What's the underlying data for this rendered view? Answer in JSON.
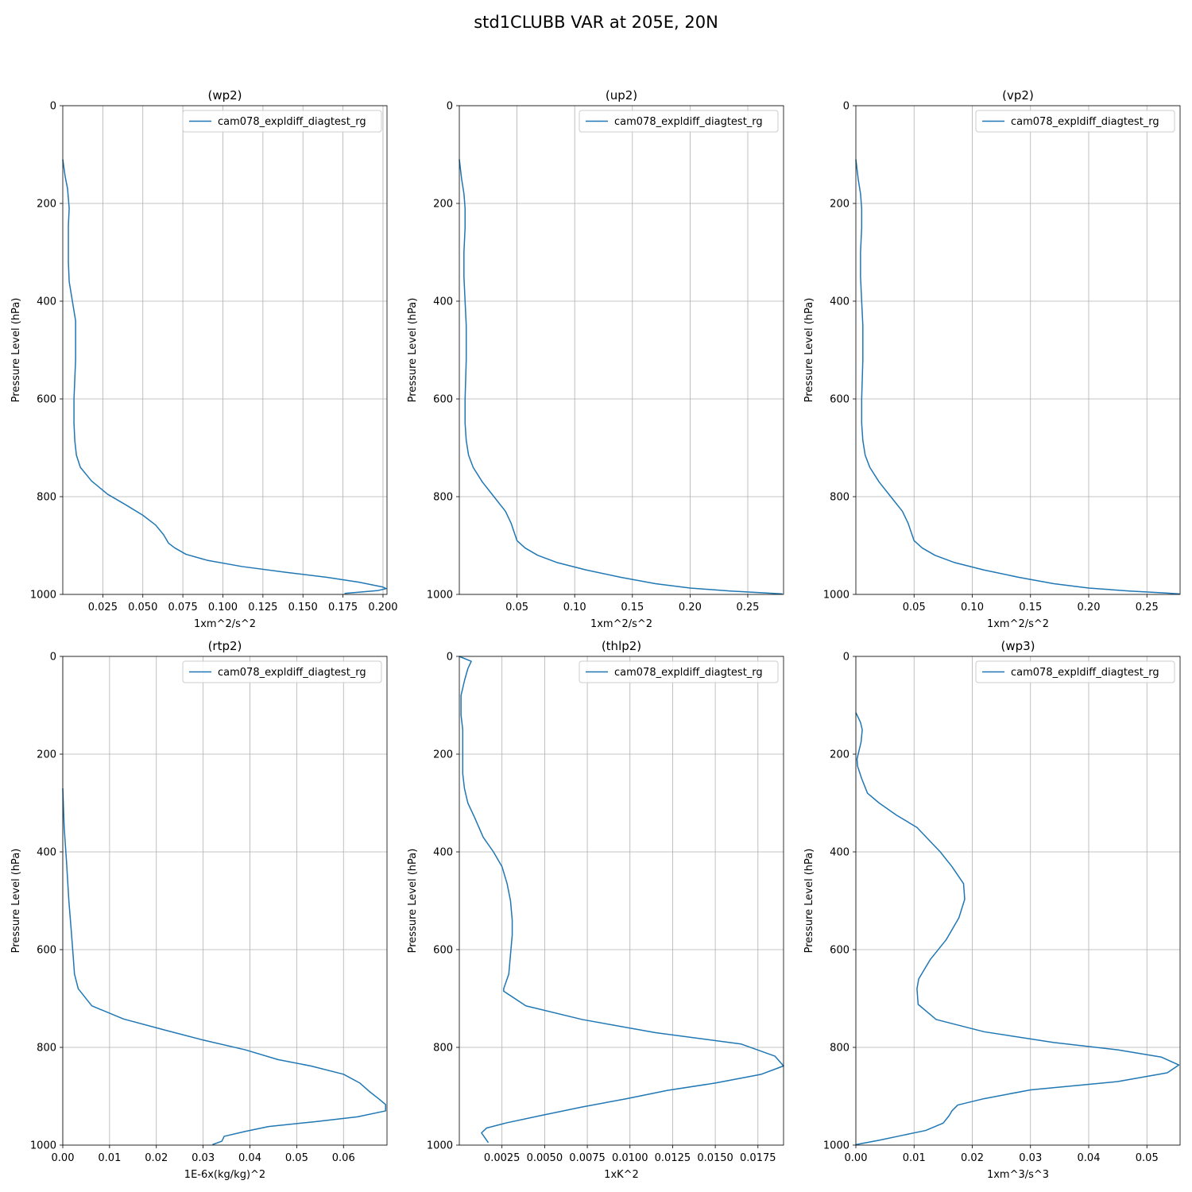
{
  "figure_title": "std1CLUBB VAR at 205E, 20N",
  "chart_data": [
    {
      "type": "line",
      "title": "(wp2)",
      "xlabel": "1xm^2/s^2",
      "ylabel": "Pressure Level (hPa)",
      "xlim": [
        0.0,
        0.2025
      ],
      "ylim": [
        1000,
        0
      ],
      "xticks": [
        0.025,
        0.05,
        0.075,
        0.1,
        0.125,
        0.15,
        0.175,
        0.2
      ],
      "xtick_labels": [
        "0.025",
        "0.050",
        "0.075",
        "0.100",
        "0.125",
        "0.150",
        "0.175",
        "0.200"
      ],
      "yticks": [
        0,
        200,
        400,
        600,
        800,
        1000
      ],
      "ytick_labels": [
        "0",
        "200",
        "400",
        "600",
        "800",
        "1000"
      ],
      "grid": true,
      "legend_position": "top-right",
      "series": [
        {
          "name": "cam078_expldiff_diagtest_rg",
          "color": "#1f77b4",
          "x": [
            0.0,
            0.0015,
            0.003,
            0.004,
            0.0035,
            0.0035,
            0.004,
            0.006,
            0.008,
            0.008,
            0.007,
            0.007,
            0.0075,
            0.0085,
            0.011,
            0.018,
            0.028,
            0.04,
            0.05,
            0.058,
            0.063,
            0.066,
            0.07,
            0.077,
            0.09,
            0.112,
            0.14,
            0.165,
            0.185,
            0.2,
            0.202,
            0.197,
            0.176
          ],
          "y": [
            110,
            145,
            170,
            210,
            245,
            320,
            360,
            400,
            440,
            520,
            600,
            650,
            685,
            715,
            740,
            768,
            795,
            818,
            838,
            858,
            878,
            895,
            905,
            918,
            930,
            943,
            955,
            965,
            975,
            985,
            988,
            992,
            998
          ]
        }
      ]
    },
    {
      "type": "line",
      "title": "(up2)",
      "xlabel": "1xm^2/s^2",
      "ylabel": "Pressure Level (hPa)",
      "xlim": [
        0.0,
        0.281
      ],
      "ylim": [
        1000,
        0
      ],
      "xticks": [
        0.05,
        0.1,
        0.15,
        0.2,
        0.25
      ],
      "xtick_labels": [
        "0.05",
        "0.10",
        "0.15",
        "0.20",
        "0.25"
      ],
      "yticks": [
        0,
        200,
        400,
        600,
        800,
        1000
      ],
      "ytick_labels": [
        "0",
        "200",
        "400",
        "600",
        "800",
        "1000"
      ],
      "grid": true,
      "legend_position": "top-right",
      "series": [
        {
          "name": "cam078_expldiff_diagtest_rg",
          "color": "#1f77b4",
          "x": [
            0.0,
            0.002,
            0.004,
            0.005,
            0.005,
            0.004,
            0.004,
            0.005,
            0.006,
            0.006,
            0.005,
            0.005,
            0.006,
            0.008,
            0.012,
            0.02,
            0.03,
            0.04,
            0.045,
            0.05,
            0.057,
            0.068,
            0.085,
            0.11,
            0.14,
            0.17,
            0.2,
            0.235,
            0.265,
            0.28
          ],
          "y": [
            110,
            150,
            180,
            210,
            250,
            300,
            350,
            400,
            450,
            520,
            600,
            650,
            685,
            715,
            740,
            770,
            800,
            830,
            855,
            890,
            905,
            920,
            935,
            950,
            965,
            978,
            987,
            993,
            997,
            999
          ]
        }
      ]
    },
    {
      "type": "line",
      "title": "(vp2)",
      "xlabel": "1xm^2/s^2",
      "ylabel": "Pressure Level (hPa)",
      "xlim": [
        0.0,
        0.2785
      ],
      "ylim": [
        1000,
        0
      ],
      "xticks": [
        0.05,
        0.1,
        0.15,
        0.2,
        0.25
      ],
      "xtick_labels": [
        "0.05",
        "0.10",
        "0.15",
        "0.20",
        "0.25"
      ],
      "yticks": [
        0,
        200,
        400,
        600,
        800,
        1000
      ],
      "ytick_labels": [
        "0",
        "200",
        "400",
        "600",
        "800",
        "1000"
      ],
      "grid": true,
      "legend_position": "top-right",
      "series": [
        {
          "name": "cam078_expldiff_diagtest_rg",
          "color": "#1f77b4",
          "x": [
            0.0,
            0.002,
            0.004,
            0.005,
            0.005,
            0.004,
            0.004,
            0.005,
            0.006,
            0.006,
            0.005,
            0.005,
            0.006,
            0.008,
            0.012,
            0.02,
            0.03,
            0.04,
            0.045,
            0.05,
            0.057,
            0.068,
            0.085,
            0.11,
            0.14,
            0.17,
            0.2,
            0.235,
            0.265,
            0.278
          ],
          "y": [
            110,
            150,
            180,
            210,
            250,
            300,
            350,
            400,
            450,
            520,
            600,
            650,
            685,
            715,
            740,
            770,
            800,
            830,
            855,
            890,
            905,
            920,
            935,
            950,
            965,
            978,
            987,
            993,
            997,
            999
          ]
        }
      ]
    },
    {
      "type": "line",
      "title": "(rtp2)",
      "xlabel": "1E-6x(kg/kg)^2",
      "ylabel": "Pressure Level (hPa)",
      "xlim": [
        0.0,
        0.0693
      ],
      "ylim": [
        1000,
        0
      ],
      "xticks": [
        0.0,
        0.01,
        0.02,
        0.03,
        0.04,
        0.05,
        0.06
      ],
      "xtick_labels": [
        "0.00",
        "0.01",
        "0.02",
        "0.03",
        "0.04",
        "0.05",
        "0.06"
      ],
      "yticks": [
        0,
        200,
        400,
        600,
        800,
        1000
      ],
      "ytick_labels": [
        "0",
        "200",
        "400",
        "600",
        "800",
        "1000"
      ],
      "grid": true,
      "legend_position": "top-right",
      "series": [
        {
          "name": "cam078_expldiff_diagtest_rg",
          "color": "#1f77b4",
          "x": [
            0.0,
            0.0003,
            0.0008,
            0.0013,
            0.0018,
            0.0022,
            0.0025,
            0.0033,
            0.0062,
            0.013,
            0.022,
            0.03,
            0.039,
            0.046,
            0.053,
            0.06,
            0.0635,
            0.0655,
            0.0675,
            0.069,
            0.069,
            0.063,
            0.054,
            0.044,
            0.039,
            0.0345,
            0.034,
            0.032
          ],
          "y": [
            270,
            350,
            420,
            500,
            560,
            610,
            650,
            680,
            715,
            742,
            765,
            785,
            805,
            825,
            838,
            855,
            873,
            890,
            905,
            917,
            930,
            942,
            952,
            962,
            972,
            982,
            992,
            999
          ]
        }
      ]
    },
    {
      "type": "line",
      "title": "(thlp2)",
      "xlabel": "1xK^2",
      "ylabel": "Pressure Level (hPa)",
      "xlim": [
        0.0,
        0.019
      ],
      "ylim": [
        1000,
        0
      ],
      "xticks": [
        0.0025,
        0.005,
        0.0075,
        0.01,
        0.0125,
        0.015,
        0.0175
      ],
      "xtick_labels": [
        "0.0025",
        "0.0050",
        "0.0075",
        "0.0100",
        "0.0125",
        "0.0150",
        "0.0175"
      ],
      "yticks": [
        0,
        200,
        400,
        600,
        800,
        1000
      ],
      "ytick_labels": [
        "0",
        "200",
        "400",
        "600",
        "800",
        "1000"
      ],
      "grid": true,
      "legend_position": "top-right",
      "series": [
        {
          "name": "cam078_expldiff_diagtest_rg",
          "color": "#1f77b4",
          "x": [
            0.0,
            0.0007,
            0.0005,
            0.0003,
            0.0001,
            0.0001,
            0.0002,
            0.0002,
            0.0002,
            0.0003,
            0.0005,
            0.0009,
            0.0014,
            0.002,
            0.0025,
            0.0028,
            0.003,
            0.0031,
            0.0031,
            0.003,
            0.0029,
            0.0026,
            0.0026,
            0.0039,
            0.0072,
            0.0115,
            0.0165,
            0.0185,
            0.019,
            0.0177,
            0.015,
            0.0122,
            0.0098,
            0.0072,
            0.0047,
            0.0027,
            0.0016,
            0.0013,
            0.0015,
            0.0017
          ],
          "y": [
            0,
            10,
            25,
            50,
            80,
            120,
            150,
            200,
            240,
            270,
            300,
            330,
            370,
            400,
            430,
            465,
            500,
            540,
            570,
            610,
            650,
            680,
            685,
            715,
            743,
            770,
            793,
            818,
            838,
            855,
            873,
            888,
            905,
            922,
            940,
            955,
            965,
            975,
            985,
            995
          ]
        }
      ]
    },
    {
      "type": "line",
      "title": "(wp3)",
      "xlabel": "1xm^3/s^3",
      "ylabel": "Pressure Level (hPa)",
      "xlim": [
        0.0,
        0.0557
      ],
      "ylim": [
        1000,
        0
      ],
      "xticks": [
        0.0,
        0.01,
        0.02,
        0.03,
        0.04,
        0.05
      ],
      "xtick_labels": [
        "0.00",
        "0.01",
        "0.02",
        "0.03",
        "0.04",
        "0.05"
      ],
      "yticks": [
        0,
        200,
        400,
        600,
        800,
        1000
      ],
      "ytick_labels": [
        "0",
        "200",
        "400",
        "600",
        "800",
        "1000"
      ],
      "grid": true,
      "legend_position": "top-right",
      "series": [
        {
          "name": "cam078_expldiff_diagtest_rg",
          "color": "#1f77b4",
          "x": [
            0.0,
            0.0008,
            0.0011,
            0.0009,
            0.0005,
            0.0002,
            0.0003,
            0.001,
            0.002,
            0.004,
            0.007,
            0.0105,
            0.0125,
            0.0145,
            0.0165,
            0.0185,
            0.0187,
            0.0177,
            0.0155,
            0.0128,
            0.0108,
            0.0105,
            0.0107,
            0.0138,
            0.022,
            0.034,
            0.045,
            0.0525,
            0.0555,
            0.0535,
            0.045,
            0.03,
            0.022,
            0.0175,
            0.0165,
            0.016,
            0.015,
            0.012,
            0.008,
            0.004,
            0.0
          ],
          "y": [
            115,
            135,
            150,
            175,
            195,
            210,
            225,
            250,
            280,
            300,
            325,
            350,
            375,
            400,
            430,
            465,
            497,
            535,
            580,
            620,
            660,
            680,
            712,
            743,
            768,
            790,
            805,
            820,
            836,
            852,
            870,
            887,
            905,
            918,
            930,
            940,
            955,
            970,
            980,
            990,
            999
          ]
        }
      ]
    }
  ]
}
